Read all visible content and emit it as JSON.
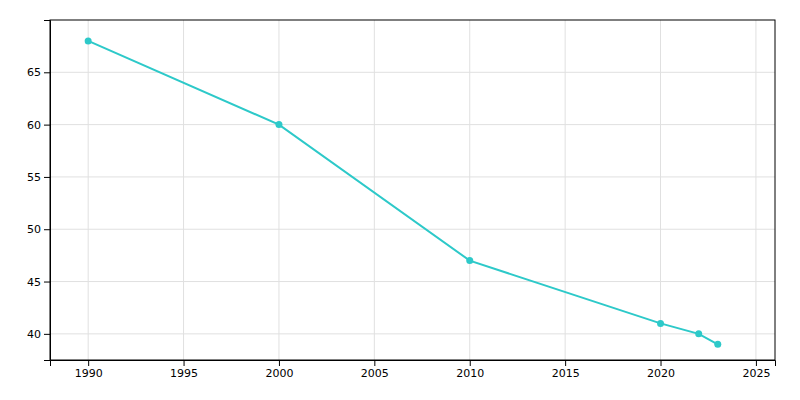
{
  "chart_data": {
    "type": "line",
    "x": [
      1990,
      2000,
      2010,
      2020,
      2022,
      2023
    ],
    "values": [
      68,
      60,
      47,
      41,
      40,
      39
    ],
    "color": "#2dc9c9",
    "marker": "circle",
    "xlim": [
      1988,
      2026
    ],
    "ylim": [
      37.5,
      70
    ],
    "xticks": [
      1990,
      1995,
      2000,
      2005,
      2010,
      2015,
      2020,
      2025
    ],
    "yticks": [
      40,
      45,
      50,
      55,
      60,
      65
    ],
    "grid": true
  }
}
